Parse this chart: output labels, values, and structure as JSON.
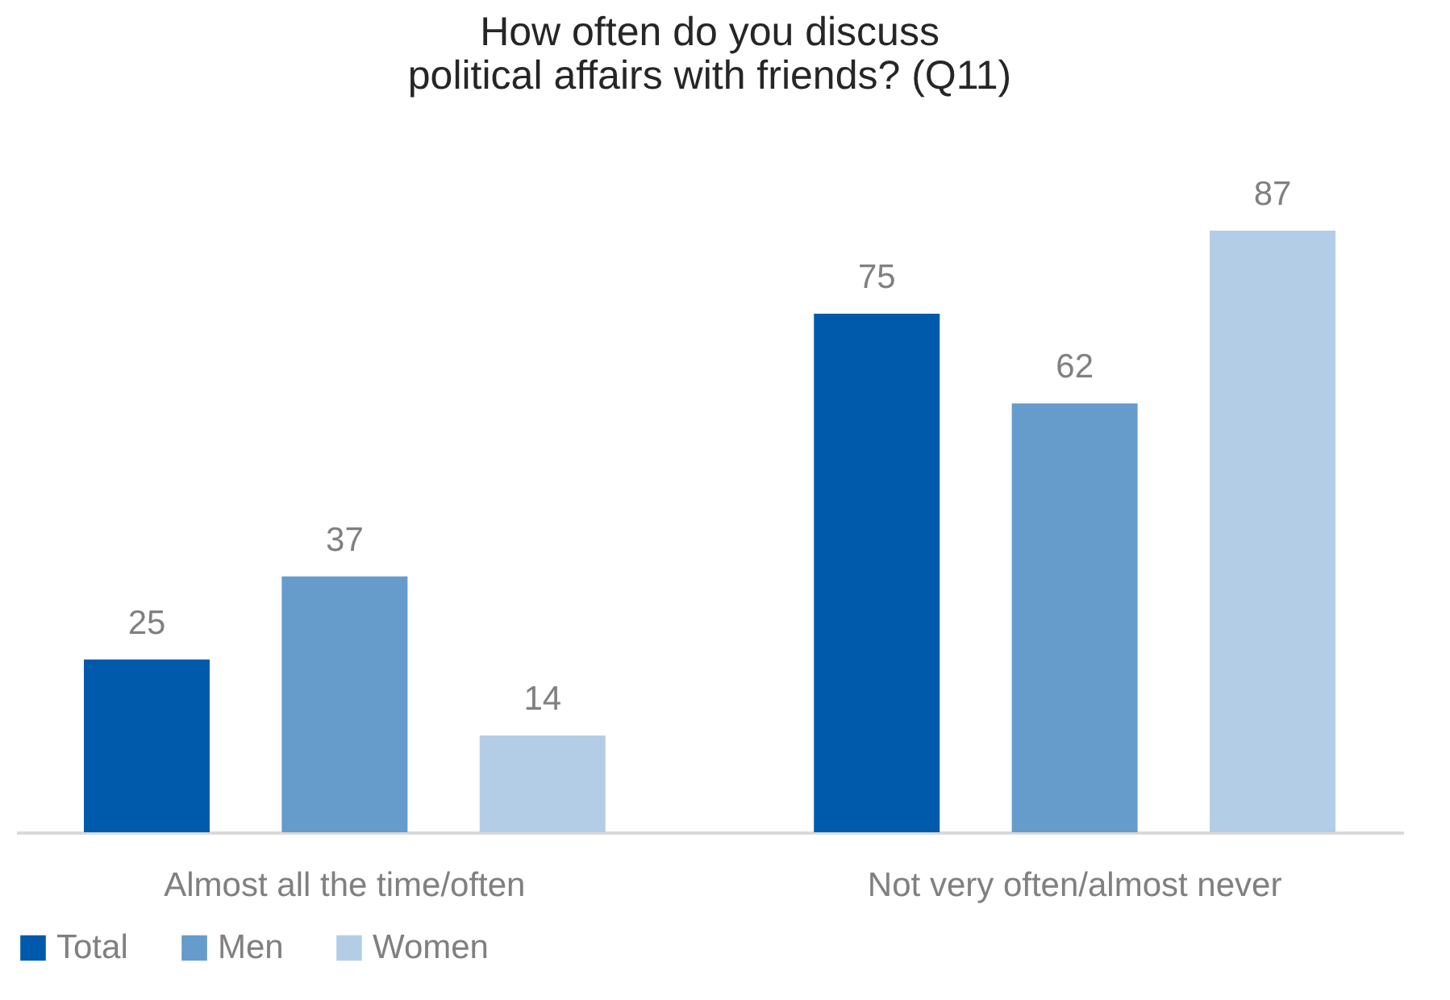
{
  "chart_data": {
    "type": "bar",
    "title": "How  often do you discuss political affairs with friends? (Q11)",
    "categories": [
      "Almost all the time/often",
      "Not very often/almost never"
    ],
    "series": [
      {
        "name": "Total",
        "color": "#005aab",
        "values": [
          25,
          75
        ]
      },
      {
        "name": "Men",
        "color": "#669ccc",
        "values": [
          37,
          62
        ]
      },
      {
        "name": "Women",
        "color": "#b3cde6",
        "values": [
          14,
          87
        ]
      }
    ],
    "data_labels": true,
    "legend": "bottom",
    "grid": false
  }
}
